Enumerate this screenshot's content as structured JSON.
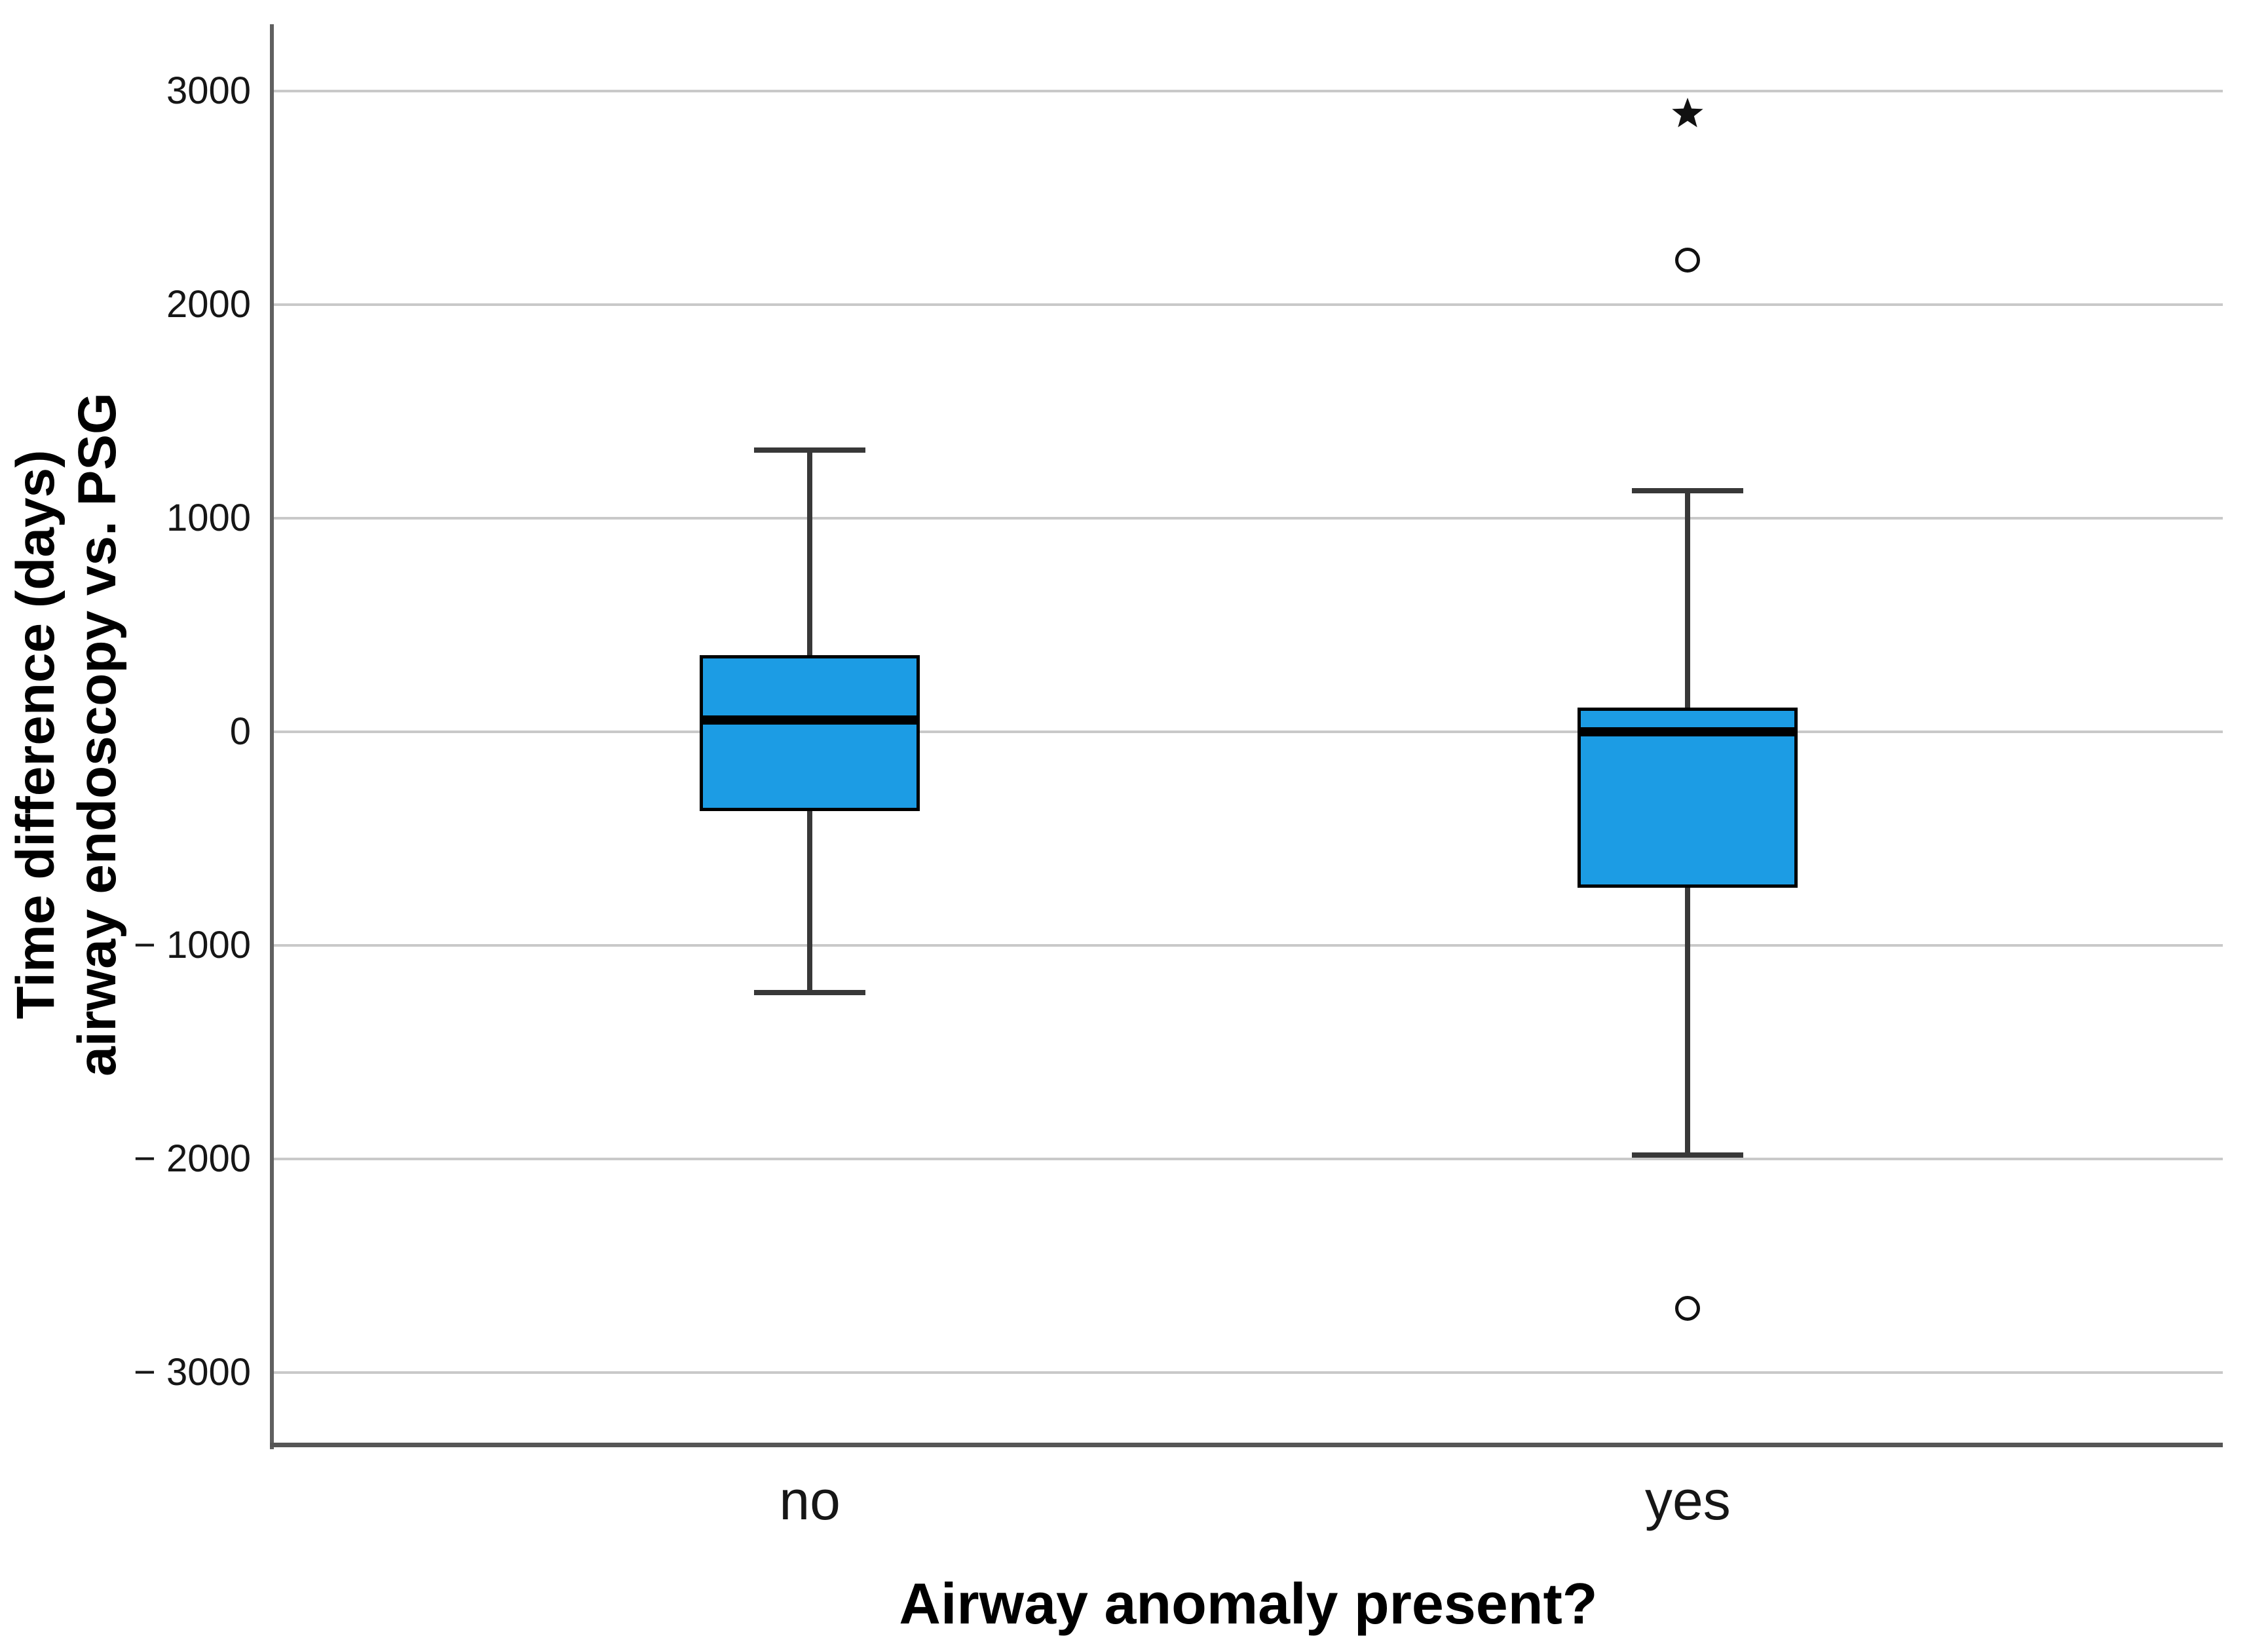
{
  "chart_data": {
    "type": "boxplot",
    "title": "",
    "xlabel": "Airway anomaly present?",
    "ylabel_lines": [
      "Time difference (days)",
      "airway endoscopy vs. PSG"
    ],
    "categories": [
      "no",
      "yes"
    ],
    "ylim": [
      -3337,
      3313
    ],
    "grid": "horizontal gridlines on",
    "legend_position": "none",
    "yticks": [
      {
        "value": 3000,
        "label": "3000"
      },
      {
        "value": 2000,
        "label": "2000"
      },
      {
        "value": 1000,
        "label": "1000"
      },
      {
        "value": 0,
        "label": "0"
      },
      {
        "value": -1000,
        "label": "− 1000"
      },
      {
        "value": -2000,
        "label": "− 2000"
      },
      {
        "value": -3000,
        "label": "− 3000"
      }
    ],
    "series": [
      {
        "category": "no",
        "whisker_low": -1220,
        "q1": -370,
        "median": 55,
        "q3": 360,
        "whisker_high": 1320,
        "outliers": []
      },
      {
        "category": "yes",
        "whisker_low": -1980,
        "q1": -730,
        "median": 0,
        "q3": 115,
        "whisker_high": 1130,
        "outliers": [
          {
            "value": 2210,
            "marker": "circle"
          },
          {
            "value": 2895,
            "marker": "star"
          },
          {
            "value": -2700,
            "marker": "circle"
          }
        ]
      }
    ],
    "colors": {
      "box_fill": "#1c9ce4",
      "box_border": "#000000",
      "median_line": "#000000",
      "whisker": "#383838",
      "gridline": "#c9c9c9",
      "axis_line": "#5a5a5a",
      "text": "#161616"
    }
  }
}
